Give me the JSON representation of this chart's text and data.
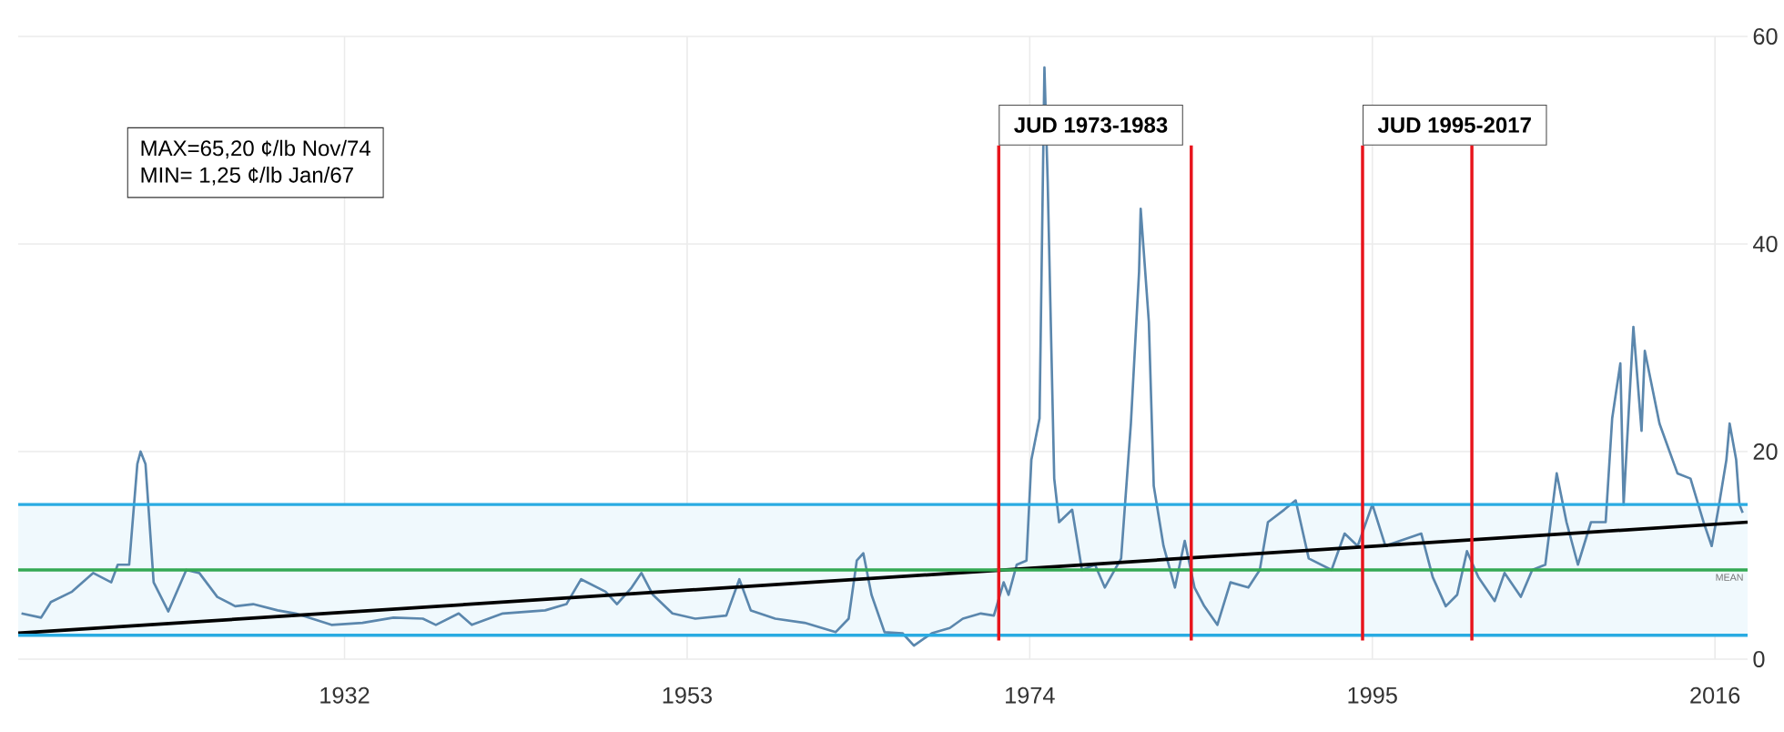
{
  "chart_data": {
    "type": "line",
    "xlim": [
      1912,
      2018
    ],
    "xticks": [
      1932,
      1953,
      1974,
      1995,
      2016
    ],
    "ylim": [
      0,
      60
    ],
    "yticks": [
      0,
      20,
      40,
      60
    ],
    "grid": true,
    "series": [
      {
        "color": "#5b87ad",
        "x": [
          1912.2,
          1913.4,
          1914,
          1915.3,
          1916.6,
          1917.7,
          1918.1,
          1918.8,
          1919.3,
          1919.5,
          1919.8,
          1920.3,
          1921.2,
          1922.3,
          1923.1,
          1924.2,
          1925.3,
          1926.4,
          1927.9,
          1929,
          1931.2,
          1933.1,
          1935,
          1936.8,
          1937.6,
          1939,
          1939.8,
          1941.7,
          1944.3,
          1945.6,
          1946.5,
          1948,
          1948.7,
          1949.6,
          1950.2,
          1950.9,
          1952.1,
          1953.5,
          1955.4,
          1956.2,
          1956.9,
          1958.4,
          1960.2,
          1962.1,
          1962.9,
          1963.4,
          1963.8,
          1964.3,
          1965.1,
          1966.2,
          1966.9,
          1968,
          1969.1,
          1969.9,
          1971,
          1971.8,
          1972.4,
          1972.7,
          1973.2,
          1973.8,
          1974.1,
          1974.6,
          1974.9,
          1975.1,
          1975.5,
          1975.8,
          1976.6,
          1977.2,
          1978,
          1978.6,
          1979.6,
          1980.2,
          1980.7,
          1980.8,
          1981.3,
          1981.6,
          1982.2,
          1982.9,
          1983.5,
          1984.1,
          1984.7,
          1985.5,
          1986.3,
          1987.4,
          1988.1,
          1988.6,
          1989.6,
          1990.3,
          1991.1,
          1992.5,
          1993.3,
          1994.1,
          1995,
          1995.8,
          1996.7,
          1998,
          1998.7,
          1999.5,
          2000.2,
          2000.8,
          2001.5,
          2002.5,
          2003.1,
          2004.1,
          2004.8,
          2005.6,
          2006.3,
          2006.9,
          2007.6,
          2008.4,
          2009.3,
          2009.7,
          2010.2,
          2010.4,
          2011,
          2011.5,
          2011.7,
          2012.6,
          2013.7,
          2014.5,
          2015.3,
          2015.8,
          2016.2,
          2016.7,
          2016.9,
          2017.3,
          2017.5,
          2017.7
        ],
        "values": [
          4.4,
          4.0,
          5.5,
          6.5,
          8.3,
          7.4,
          9.1,
          9.1,
          18.8,
          20,
          18.8,
          7.4,
          4.6,
          8.6,
          8.3,
          6.0,
          5.1,
          5.3,
          4.7,
          4.4,
          3.3,
          3.5,
          4.0,
          3.9,
          3.3,
          4.4,
          3.3,
          4.4,
          4.7,
          5.3,
          7.7,
          6.5,
          5.3,
          6.9,
          8.3,
          6.2,
          4.4,
          3.9,
          4.2,
          7.7,
          4.7,
          3.9,
          3.5,
          2.6,
          3.9,
          9.5,
          10.2,
          6.2,
          2.6,
          2.5,
          1.3,
          2.5,
          3.0,
          3.9,
          4.4,
          4.2,
          7.4,
          6.2,
          9.1,
          9.5,
          19.2,
          23.2,
          57,
          46,
          17.4,
          13.2,
          14.4,
          8.6,
          9.1,
          6.9,
          9.7,
          22.7,
          37.3,
          43.4,
          32.5,
          16.7,
          10.9,
          6.9,
          11.4,
          6.9,
          5.1,
          3.3,
          7.4,
          6.9,
          8.6,
          13.2,
          14.4,
          15.3,
          9.7,
          8.6,
          12.1,
          10.9,
          14.9,
          10.9,
          11.4,
          12.1,
          7.9,
          5.1,
          6.2,
          10.4,
          7.9,
          5.6,
          8.3,
          6.0,
          8.6,
          9.1,
          17.9,
          13.2,
          9.1,
          13.2,
          13.2,
          23.2,
          28.5,
          14.9,
          32,
          22,
          29.7,
          22.7,
          17.9,
          17.4,
          13.2,
          10.9,
          14.4,
          19.2,
          22.7,
          19.2,
          14.9,
          14.1
        ]
      },
      {
        "type": "line",
        "color": "#000000",
        "x": [
          1912,
          2018
        ],
        "values": [
          2.5,
          13.2
        ]
      }
    ],
    "ref_lines": [
      {
        "axis": "y",
        "value": 8.6,
        "label": "MEAN",
        "color": "#34a853"
      },
      {
        "axis": "y",
        "value": 2.3,
        "color": "#29abe2"
      },
      {
        "axis": "y",
        "value": 14.9,
        "color": "#29abe2"
      },
      {
        "axis": "x",
        "value": 1972.1,
        "label": "JUD 1973-1983",
        "color": "#e8141c"
      },
      {
        "axis": "x",
        "value": 1983.9,
        "color": "#e8141c"
      },
      {
        "axis": "x",
        "value": 1994.4,
        "label": "JUD 1995-2017",
        "color": "#e8141c"
      },
      {
        "axis": "x",
        "value": 2001.1,
        "color": "#e8141c"
      }
    ],
    "bands": [
      {
        "axis": "y",
        "from": 2.3,
        "to": 14.9,
        "color": "#f0f9fd"
      }
    ],
    "annotations": [
      "MAX=65,20 ¢/lb Nov/74",
      "MIN=   1,25 ¢/lb Jan/67"
    ]
  }
}
